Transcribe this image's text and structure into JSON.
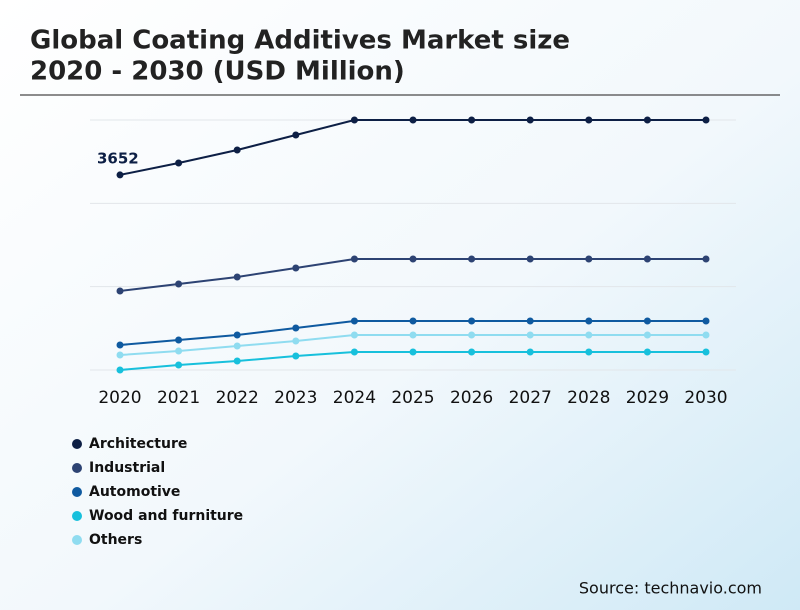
{
  "chart_data": {
    "type": "line",
    "title": [
      "Global Coating Additives Market size",
      "2020 - 2030 (USD Million)"
    ],
    "x": [
      2020,
      2021,
      2022,
      2023,
      2024,
      2025,
      2026,
      2027,
      2028,
      2029,
      2030
    ],
    "series": [
      {
        "name": "Architecture",
        "color": "#0d1f45",
        "values": [
          3652,
          3875,
          4118,
          4399,
          4680,
          4680,
          4680,
          4680,
          4680,
          4680,
          4680
        ]
      },
      {
        "name": "Industrial",
        "color": "#2d4373",
        "values": [
          1479,
          1610,
          1741,
          1909,
          2078,
          2078,
          2078,
          2078,
          2078,
          2078,
          2078
        ]
      },
      {
        "name": "Automotive",
        "color": "#0f5aa0",
        "values": [
          468,
          562,
          655,
          786,
          917,
          917,
          917,
          917,
          917,
          917,
          917
        ]
      },
      {
        "name": "Wood and furniture",
        "color": "#17c0dc",
        "values": [
          0,
          94,
          168,
          262,
          337,
          337,
          337,
          337,
          337,
          337,
          337
        ]
      },
      {
        "name": "Others",
        "color": "#8fdcf0",
        "values": [
          281,
          356,
          449,
          543,
          655,
          655,
          655,
          655,
          655,
          655,
          655
        ]
      }
    ],
    "ylim": [
      0,
      4680
    ],
    "yticks": [
      0,
      1560,
      3120,
      4680
    ],
    "grid": true,
    "source": "Source: technavio.com"
  }
}
